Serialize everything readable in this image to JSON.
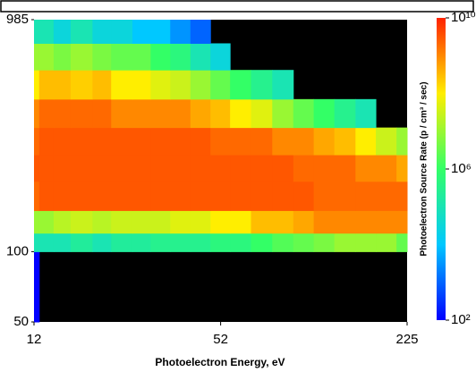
{
  "chart_data": {
    "type": "heatmap",
    "x_label": "Photoelectron Energy, eV",
    "colorbar_label": "Photoelectron Source Rate (p / cm³ / sec)",
    "xscale": "log",
    "yscale": "log",
    "zscale": "log",
    "xlim": [
      12,
      225
    ],
    "xticks": [
      12,
      52,
      225
    ],
    "ylim": [
      50,
      985
    ],
    "yticks": [
      985,
      100,
      50
    ],
    "zlim": [
      100,
      10000000000.0
    ],
    "zticks": [
      {
        "value": 100,
        "label": "10²"
      },
      {
        "value": 1000000.0,
        "label": "10⁶"
      },
      {
        "value": 10000000000.0,
        "label": "10¹⁰"
      }
    ],
    "colormap": [
      "#0000ff",
      "#00c8ff",
      "#33ff66",
      "#ffee00",
      "#ff2200"
    ],
    "background": "#000000",
    "x_edges": [
      12,
      12.5,
      14,
      16,
      19,
      22,
      26,
      30,
      35,
      41,
      48,
      56,
      66,
      78,
      92,
      108,
      127,
      150,
      176,
      207,
      225
    ],
    "y_edges": [
      50,
      100,
      120,
      150,
      200,
      260,
      340,
      450,
      600,
      780,
      985
    ],
    "z": [
      [
        100,
        null,
        null,
        null,
        null,
        null,
        null,
        null,
        null,
        null,
        null,
        null,
        null,
        null,
        null,
        null,
        null,
        null,
        null,
        null
      ],
      [
        100000.0,
        100000.0,
        100000.0,
        200000.0,
        100000.0,
        200000.0,
        200000.0,
        300000.0,
        300000.0,
        300000.0,
        500000.0,
        500000.0,
        1000000.0,
        2000000.0,
        3000000.0,
        5000000.0,
        10000000.0,
        10000000.0,
        10000000.0,
        3000000.0
      ],
      [
        10000000.0,
        10000000.0,
        20000000.0,
        30000000.0,
        20000000.0,
        30000000.0,
        30000000.0,
        30000000.0,
        50000000.0,
        50000000.0,
        100000000.0,
        100000000.0,
        300000000.0,
        300000000.0,
        500000000.0,
        1000000000.0,
        1000000000.0,
        1000000000.0,
        1000000000.0,
        1000000000.0
      ],
      [
        2000000000.0,
        3000000000.0,
        3000000000.0,
        3000000000.0,
        3000000000.0,
        3000000000.0,
        3000000000.0,
        3000000000.0,
        3000000000.0,
        3000000000.0,
        3000000000.0,
        3000000000.0,
        3000000000.0,
        3000000000.0,
        3000000000.0,
        2000000000.0,
        2000000000.0,
        2000000000.0,
        2000000000.0,
        2000000000.0
      ],
      [
        3000000000.0,
        3000000000.0,
        3000000000.0,
        3000000000.0,
        3000000000.0,
        3000000000.0,
        3000000000.0,
        3000000000.0,
        3000000000.0,
        3000000000.0,
        3000000000.0,
        3000000000.0,
        3000000000.0,
        3000000000.0,
        2000000000.0,
        2000000000.0,
        2000000000.0,
        1000000000.0,
        1000000000.0,
        500000000.0
      ],
      [
        2000000000.0,
        3000000000.0,
        3000000000.0,
        3000000000.0,
        3000000000.0,
        3000000000.0,
        3000000000.0,
        3000000000.0,
        3000000000.0,
        3000000000.0,
        2000000000.0,
        2000000000.0,
        2000000000.0,
        1000000000.0,
        1000000000.0,
        500000000.0,
        300000000.0,
        100000000.0,
        30000000.0,
        10000000.0
      ],
      [
        1000000000.0,
        2000000000.0,
        2000000000.0,
        2000000000.0,
        2000000000.0,
        1000000000.0,
        1000000000.0,
        1000000000.0,
        1000000000.0,
        500000000.0,
        300000000.0,
        100000000.0,
        50000000.0,
        10000000.0,
        3000000.0,
        1000000.0,
        300000.0,
        100000.0,
        null,
        null
      ],
      [
        100000000.0,
        300000000.0,
        300000000.0,
        200000000.0,
        300000000.0,
        100000000.0,
        100000000.0,
        50000000.0,
        30000000.0,
        10000000.0,
        3000000.0,
        1000000.0,
        300000.0,
        100000.0,
        null,
        null,
        null,
        null,
        null,
        null
      ],
      [
        10000000.0,
        10000000.0,
        5000000.0,
        10000000.0,
        5000000.0,
        3000000.0,
        3000000.0,
        1000000.0,
        500000.0,
        100000.0,
        30000.0,
        null,
        null,
        null,
        null,
        null,
        null,
        null,
        null,
        null
      ],
      [
        100000.0,
        100000.0,
        30000.0,
        100000.0,
        30000.0,
        30000.0,
        10000.0,
        10000.0,
        3000.0,
        1000.0,
        null,
        null,
        null,
        null,
        null,
        null,
        null,
        null,
        null,
        null
      ]
    ]
  }
}
